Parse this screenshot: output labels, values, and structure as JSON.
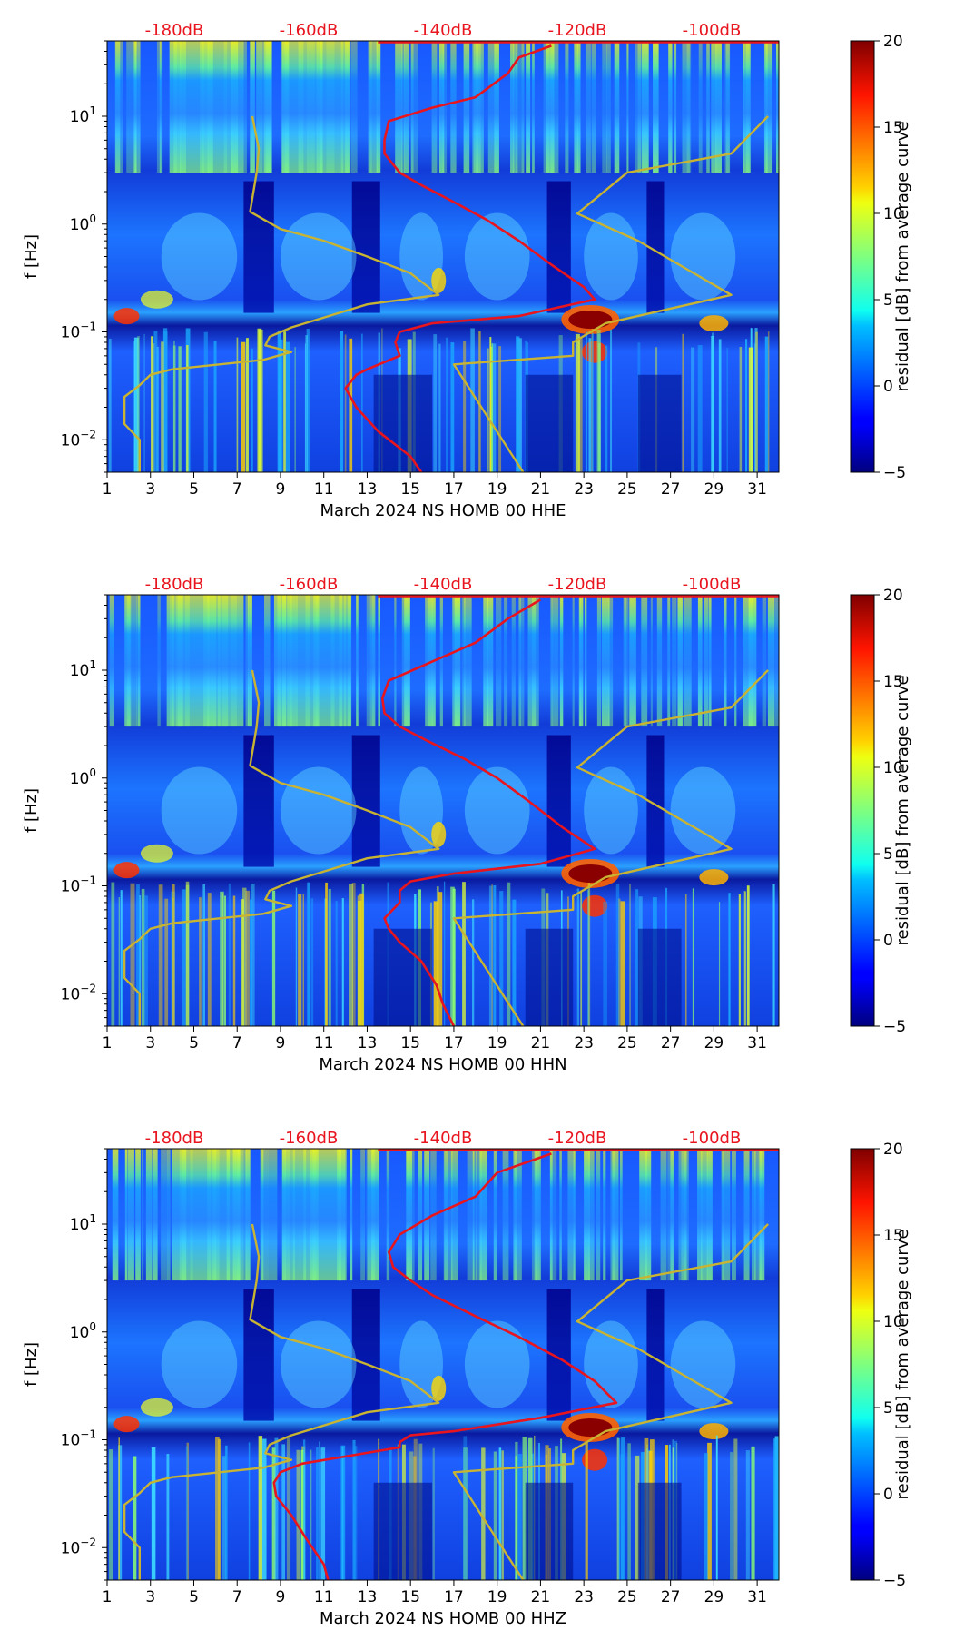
{
  "chart_data": [
    {
      "type": "heatmap",
      "xlabel": "March 2024 NS HOMB 00 HHE",
      "ylabel": "f [Hz]",
      "x_ticks": [
        "1",
        "3",
        "5",
        "7",
        "9",
        "11",
        "13",
        "15",
        "17",
        "19",
        "21",
        "23",
        "25",
        "27",
        "29",
        "31"
      ],
      "xlim": [
        1,
        32
      ],
      "y_scale": "log",
      "ylim": [
        0.005,
        50
      ],
      "y_ticks": [
        "10^-2",
        "10^-1",
        "10^0",
        "10^1"
      ],
      "top_labels": [
        "-180dB",
        "-160dB",
        "-140dB",
        "-120dB",
        "-100dB"
      ],
      "colorbar": {
        "label": "residual [dB] from average curve",
        "ticks": [
          "20",
          "15",
          "10",
          "5",
          "0",
          "−5"
        ],
        "range": [
          -5,
          20
        ],
        "colormap": "jet"
      },
      "series": [
        {
          "color": "#e8141e",
          "points": [
            [
              21.5,
              45
            ],
            [
              20,
              35
            ],
            [
              19.5,
              25
            ],
            [
              18,
              15
            ],
            [
              16,
              12
            ],
            [
              14,
              9
            ],
            [
              13.8,
              6
            ],
            [
              13.8,
              4.5
            ],
            [
              14.5,
              3
            ],
            [
              15.5,
              2.3
            ],
            [
              17,
              1.6
            ],
            [
              18.5,
              1.1
            ],
            [
              20,
              0.7
            ],
            [
              21.5,
              0.42
            ],
            [
              23,
              0.26
            ],
            [
              23.5,
              0.2
            ],
            [
              20,
              0.14
            ],
            [
              16,
              0.12
            ],
            [
              14.5,
              0.1
            ],
            [
              14.3,
              0.08
            ],
            [
              14.5,
              0.06
            ],
            [
              13,
              0.045
            ],
            [
              12.5,
              0.04
            ],
            [
              12,
              0.03
            ],
            [
              12.5,
              0.02
            ],
            [
              13.5,
              0.012
            ],
            [
              15,
              0.007
            ],
            [
              15.5,
              0.005
            ]
          ]
        },
        {
          "color": "#c8b432",
          "points": [
            [
              7.7,
              10
            ],
            [
              8.0,
              5
            ],
            [
              7.9,
              3
            ],
            [
              7.6,
              1.3
            ],
            [
              9,
              0.9
            ],
            [
              11,
              0.7
            ],
            [
              13,
              0.5
            ],
            [
              15,
              0.35
            ],
            [
              16.3,
              0.22
            ],
            [
              13,
              0.18
            ],
            [
              9.5,
              0.11
            ],
            [
              8.5,
              0.09
            ],
            [
              8.3,
              0.075
            ],
            [
              9.5,
              0.065
            ],
            [
              8.2,
              0.055
            ],
            [
              4,
              0.045
            ],
            [
              3,
              0.04
            ],
            [
              2.5,
              0.032
            ],
            [
              1.8,
              0.025
            ],
            [
              1.8,
              0.014
            ],
            [
              2.5,
              0.01
            ],
            [
              2.5,
              0.005
            ]
          ]
        },
        {
          "color": "#c8b432",
          "points": [
            [
              31.5,
              10
            ],
            [
              29.8,
              4.5
            ],
            [
              25,
              3
            ],
            [
              22.7,
              1.25
            ],
            [
              25.5,
              0.7
            ],
            [
              29.8,
              0.22
            ],
            [
              24,
              0.12
            ],
            [
              22.5,
              0.08
            ],
            [
              22.5,
              0.06
            ],
            [
              17,
              0.05
            ],
            [
              20.2,
              0.005
            ]
          ]
        }
      ]
    },
    {
      "type": "heatmap",
      "xlabel": "March 2024 NS HOMB 00 HHN",
      "ylabel": "f [Hz]",
      "x_ticks": [
        "1",
        "3",
        "5",
        "7",
        "9",
        "11",
        "13",
        "15",
        "17",
        "19",
        "21",
        "23",
        "25",
        "27",
        "29",
        "31"
      ],
      "xlim": [
        1,
        32
      ],
      "y_scale": "log",
      "ylim": [
        0.005,
        50
      ],
      "y_ticks": [
        "10^-2",
        "10^-1",
        "10^0",
        "10^1"
      ],
      "top_labels": [
        "-180dB",
        "-160dB",
        "-140dB",
        "-120dB",
        "-100dB"
      ],
      "colorbar": {
        "label": "residual [dB] from average curve",
        "ticks": [
          "20",
          "15",
          "10",
          "5",
          "0",
          "−5"
        ],
        "range": [
          -5,
          20
        ],
        "colormap": "jet"
      },
      "series": [
        {
          "color": "#e8141e",
          "points": [
            [
              21,
              45
            ],
            [
              19.5,
              30
            ],
            [
              18,
              18
            ],
            [
              16,
              12
            ],
            [
              14,
              8
            ],
            [
              13.7,
              5.5
            ],
            [
              13.8,
              4
            ],
            [
              14.5,
              3
            ],
            [
              15.8,
              2.2
            ],
            [
              17.5,
              1.5
            ],
            [
              19,
              1.0
            ],
            [
              20.5,
              0.6
            ],
            [
              22,
              0.35
            ],
            [
              23.5,
              0.22
            ],
            [
              21,
              0.16
            ],
            [
              17,
              0.13
            ],
            [
              15,
              0.11
            ],
            [
              14.5,
              0.09
            ],
            [
              14.5,
              0.07
            ],
            [
              13.8,
              0.05
            ],
            [
              14,
              0.04
            ],
            [
              14.5,
              0.03
            ],
            [
              15.5,
              0.02
            ],
            [
              16.2,
              0.012
            ],
            [
              16.5,
              0.008
            ],
            [
              17,
              0.005
            ]
          ]
        },
        {
          "color": "#c8b432",
          "points": [
            [
              7.7,
              10
            ],
            [
              8.0,
              5
            ],
            [
              7.9,
              3
            ],
            [
              7.6,
              1.3
            ],
            [
              9,
              0.9
            ],
            [
              11,
              0.7
            ],
            [
              13,
              0.5
            ],
            [
              15,
              0.35
            ],
            [
              16.3,
              0.22
            ],
            [
              13,
              0.18
            ],
            [
              9.5,
              0.11
            ],
            [
              8.5,
              0.09
            ],
            [
              8.3,
              0.075
            ],
            [
              9.5,
              0.065
            ],
            [
              8.2,
              0.055
            ],
            [
              4,
              0.045
            ],
            [
              3,
              0.04
            ],
            [
              2.5,
              0.032
            ],
            [
              1.8,
              0.025
            ],
            [
              1.8,
              0.014
            ],
            [
              2.5,
              0.01
            ],
            [
              2.5,
              0.005
            ]
          ]
        },
        {
          "color": "#c8b432",
          "points": [
            [
              31.5,
              10
            ],
            [
              29.8,
              4.5
            ],
            [
              25,
              3
            ],
            [
              22.7,
              1.25
            ],
            [
              25.5,
              0.7
            ],
            [
              29.8,
              0.22
            ],
            [
              24,
              0.12
            ],
            [
              22.5,
              0.08
            ],
            [
              22.5,
              0.06
            ],
            [
              17,
              0.05
            ],
            [
              20.2,
              0.005
            ]
          ]
        }
      ]
    },
    {
      "type": "heatmap",
      "xlabel": "March 2024 NS HOMB 00 HHZ",
      "ylabel": "f [Hz]",
      "x_ticks": [
        "1",
        "3",
        "5",
        "7",
        "9",
        "11",
        "13",
        "15",
        "17",
        "19",
        "21",
        "23",
        "25",
        "27",
        "29",
        "31"
      ],
      "xlim": [
        1,
        32
      ],
      "y_scale": "log",
      "ylim": [
        0.005,
        50
      ],
      "y_ticks": [
        "10^-2",
        "10^-1",
        "10^0",
        "10^1"
      ],
      "top_labels": [
        "-180dB",
        "-160dB",
        "-140dB",
        "-120dB",
        "-100dB"
      ],
      "colorbar": {
        "label": "residual [dB] from average curve",
        "ticks": [
          "20",
          "15",
          "10",
          "5",
          "0",
          "−5"
        ],
        "range": [
          -5,
          20
        ],
        "colormap": "jet"
      },
      "series": [
        {
          "color": "#e8141e",
          "points": [
            [
              21.5,
              45
            ],
            [
              19,
              30
            ],
            [
              18,
              18
            ],
            [
              16,
              12
            ],
            [
              14.5,
              8
            ],
            [
              14,
              5.5
            ],
            [
              14.2,
              4
            ],
            [
              15,
              3
            ],
            [
              16,
              2.2
            ],
            [
              18,
              1.4
            ],
            [
              20,
              0.9
            ],
            [
              22,
              0.55
            ],
            [
              23.5,
              0.35
            ],
            [
              24.5,
              0.22
            ],
            [
              21,
              0.16
            ],
            [
              17,
              0.12
            ],
            [
              15,
              0.11
            ],
            [
              14.5,
              0.095
            ],
            [
              14.5,
              0.085
            ],
            [
              12,
              0.07
            ],
            [
              10,
              0.06
            ],
            [
              9,
              0.05
            ],
            [
              8.7,
              0.04
            ],
            [
              8.8,
              0.03
            ],
            [
              9.5,
              0.02
            ],
            [
              10.2,
              0.012
            ],
            [
              11,
              0.007
            ],
            [
              11.2,
              0.005
            ]
          ]
        },
        {
          "color": "#c8b432",
          "points": [
            [
              7.7,
              10
            ],
            [
              8.0,
              5
            ],
            [
              7.9,
              3
            ],
            [
              7.6,
              1.3
            ],
            [
              9,
              0.9
            ],
            [
              11,
              0.7
            ],
            [
              13,
              0.5
            ],
            [
              15,
              0.35
            ],
            [
              16.3,
              0.22
            ],
            [
              13,
              0.18
            ],
            [
              9.5,
              0.11
            ],
            [
              8.5,
              0.09
            ],
            [
              8.3,
              0.075
            ],
            [
              9.5,
              0.065
            ],
            [
              8.2,
              0.055
            ],
            [
              4,
              0.045
            ],
            [
              3,
              0.04
            ],
            [
              2.5,
              0.032
            ],
            [
              1.8,
              0.025
            ],
            [
              1.8,
              0.014
            ],
            [
              2.5,
              0.01
            ],
            [
              2.5,
              0.005
            ]
          ]
        },
        {
          "color": "#c8b432",
          "points": [
            [
              31.5,
              10
            ],
            [
              29.8,
              4.5
            ],
            [
              25,
              3
            ],
            [
              22.7,
              1.25
            ],
            [
              25.5,
              0.7
            ],
            [
              29.8,
              0.22
            ],
            [
              24,
              0.12
            ],
            [
              22.5,
              0.08
            ],
            [
              22.5,
              0.06
            ],
            [
              17,
              0.05
            ],
            [
              20.2,
              0.005
            ]
          ]
        }
      ]
    }
  ]
}
